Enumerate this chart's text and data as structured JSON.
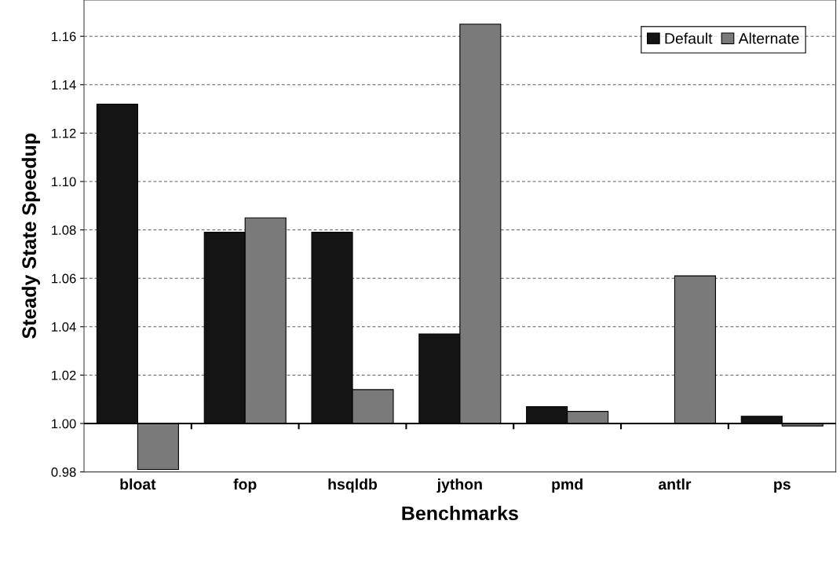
{
  "chart_data": {
    "type": "bar",
    "xlabel": "Benchmarks",
    "ylabel": "Steady State Speedup",
    "categories": [
      "bloat",
      "fop",
      "hsqldb",
      "jython",
      "pmd",
      "antlr",
      "ps"
    ],
    "series": [
      {
        "name": "Default",
        "color": "#141414",
        "base": [
          1,
          1,
          1,
          1,
          1,
          null,
          1
        ],
        "values": [
          0.132,
          0.079,
          0.079,
          0.037,
          0.007,
          null,
          0.003
        ]
      },
      {
        "name": "Alternate",
        "color": "#7a7a7a",
        "base": [
          1,
          1,
          1,
          1,
          1,
          1,
          1
        ],
        "values": [
          -0.019,
          0.085,
          0.014,
          0.165,
          0.005,
          0.061,
          -0.001
        ]
      }
    ],
    "ylim": [
      0.98,
      1.175
    ],
    "yticks": [
      {
        "value": 0.98,
        "label": "0.98"
      },
      {
        "value": 1.0,
        "label": "1.00"
      },
      {
        "value": 1.02,
        "label": "1.02"
      },
      {
        "value": 1.04,
        "label": "1.04"
      },
      {
        "value": 1.06,
        "label": "1.06"
      },
      {
        "value": 1.08,
        "label": "1.08"
      },
      {
        "value": 1.1,
        "label": "1.10"
      },
      {
        "value": 1.12,
        "label": "1.12"
      },
      {
        "value": 1.14,
        "label": "1.14"
      },
      {
        "value": 1.16,
        "label": "1.16"
      }
    ],
    "ref_lines": [
      {
        "axis": "y",
        "value": 1.0,
        "color": "#000000",
        "line_style": "solid"
      }
    ],
    "grid": "y",
    "legend": "top right"
  }
}
